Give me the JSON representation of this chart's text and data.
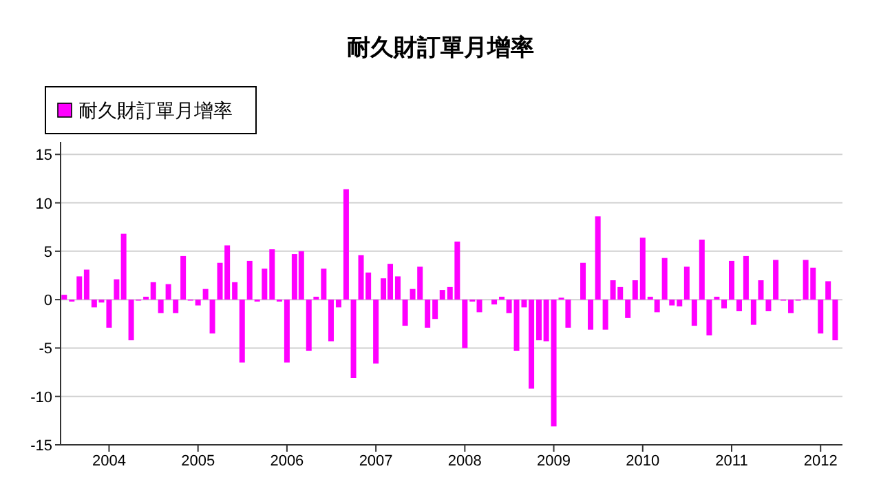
{
  "chart_data": {
    "type": "bar",
    "title": "耐久財訂單月增率",
    "x": [
      "2003-07",
      "2003-08",
      "2003-09",
      "2003-10",
      "2003-11",
      "2003-12",
      "2004-01",
      "2004-02",
      "2004-03",
      "2004-04",
      "2004-05",
      "2004-06",
      "2004-07",
      "2004-08",
      "2004-09",
      "2004-10",
      "2004-11",
      "2004-12",
      "2005-01",
      "2005-02",
      "2005-03",
      "2005-04",
      "2005-05",
      "2005-06",
      "2005-07",
      "2005-08",
      "2005-09",
      "2005-10",
      "2005-11",
      "2005-12",
      "2006-01",
      "2006-02",
      "2006-03",
      "2006-04",
      "2006-05",
      "2006-06",
      "2006-07",
      "2006-08",
      "2006-09",
      "2006-10",
      "2006-11",
      "2006-12",
      "2007-01",
      "2007-02",
      "2007-03",
      "2007-04",
      "2007-05",
      "2007-06",
      "2007-07",
      "2007-08",
      "2007-09",
      "2007-10",
      "2007-11",
      "2007-12",
      "2008-01",
      "2008-02",
      "2008-03",
      "2008-04",
      "2008-05",
      "2008-06",
      "2008-07",
      "2008-08",
      "2008-09",
      "2008-10",
      "2008-11",
      "2008-12",
      "2009-01",
      "2009-02",
      "2009-03",
      "2009-04",
      "2009-05",
      "2009-06",
      "2009-07",
      "2009-08",
      "2009-09",
      "2009-10",
      "2009-11",
      "2009-12",
      "2010-01",
      "2010-02",
      "2010-03",
      "2010-04",
      "2010-05",
      "2010-06",
      "2010-07",
      "2010-08",
      "2010-09",
      "2010-10",
      "2010-11",
      "2010-12",
      "2011-01",
      "2011-02",
      "2011-03",
      "2011-04",
      "2011-05",
      "2011-06",
      "2011-07",
      "2011-08",
      "2011-09",
      "2011-10",
      "2011-11",
      "2011-12",
      "2012-01",
      "2012-02",
      "2012-03"
    ],
    "series": [
      {
        "name": "耐久財訂單月增率",
        "color": "#ff00ff",
        "values": [
          0.5,
          -0.2,
          2.4,
          3.1,
          -0.8,
          -0.3,
          -2.9,
          2.1,
          6.8,
          -4.2,
          -0.1,
          0.3,
          1.8,
          -1.4,
          1.6,
          -1.4,
          4.5,
          -0.1,
          -0.6,
          1.1,
          -3.5,
          3.8,
          5.6,
          1.8,
          -6.5,
          4.0,
          -0.2,
          3.2,
          5.2,
          -0.2,
          -6.5,
          4.7,
          5.0,
          -5.3,
          0.3,
          3.2,
          -4.3,
          -0.8,
          11.4,
          -8.1,
          4.6,
          2.8,
          -6.6,
          2.2,
          3.7,
          2.4,
          -2.7,
          1.1,
          3.4,
          -2.9,
          -2.0,
          1.0,
          1.3,
          6.0,
          -5.0,
          -0.2,
          -1.3,
          0,
          -0.5,
          0.3,
          -1.4,
          -5.3,
          -0.8,
          -9.2,
          -4.2,
          -4.3,
          -13.1,
          0.2,
          -2.9,
          0,
          3.8,
          -3.1,
          8.6,
          -3.1,
          2.0,
          1.3,
          -1.9,
          2.0,
          6.4,
          0.3,
          -1.3,
          4.3,
          -0.6,
          -0.7,
          3.4,
          -2.7,
          6.2,
          -3.7,
          0.3,
          -0.9,
          4.0,
          -1.2,
          4.5,
          -2.6,
          2.0,
          -1.2,
          4.1,
          -0.1,
          -1.4,
          -0.1,
          4.1,
          3.3,
          -3.5,
          1.9,
          -4.2
        ]
      }
    ],
    "xlim": [
      "2003-06-16",
      "2012-03-31"
    ],
    "xticks": [
      {
        "value": "2004-01",
        "label": "2004"
      },
      {
        "value": "2005-01",
        "label": "2005"
      },
      {
        "value": "2006-01",
        "label": "2006"
      },
      {
        "value": "2007-01",
        "label": "2007"
      },
      {
        "value": "2008-01",
        "label": "2008"
      },
      {
        "value": "2009-01",
        "label": "2009"
      },
      {
        "value": "2010-01",
        "label": "2010"
      },
      {
        "value": "2011-01",
        "label": "2011"
      },
      {
        "value": "2012-01",
        "label": "2012"
      }
    ],
    "ylim": [
      -15,
      16.3
    ],
    "yticks": [
      -15,
      -10,
      -5,
      0,
      5,
      10,
      15
    ],
    "grid": "y",
    "legend": "top left"
  }
}
